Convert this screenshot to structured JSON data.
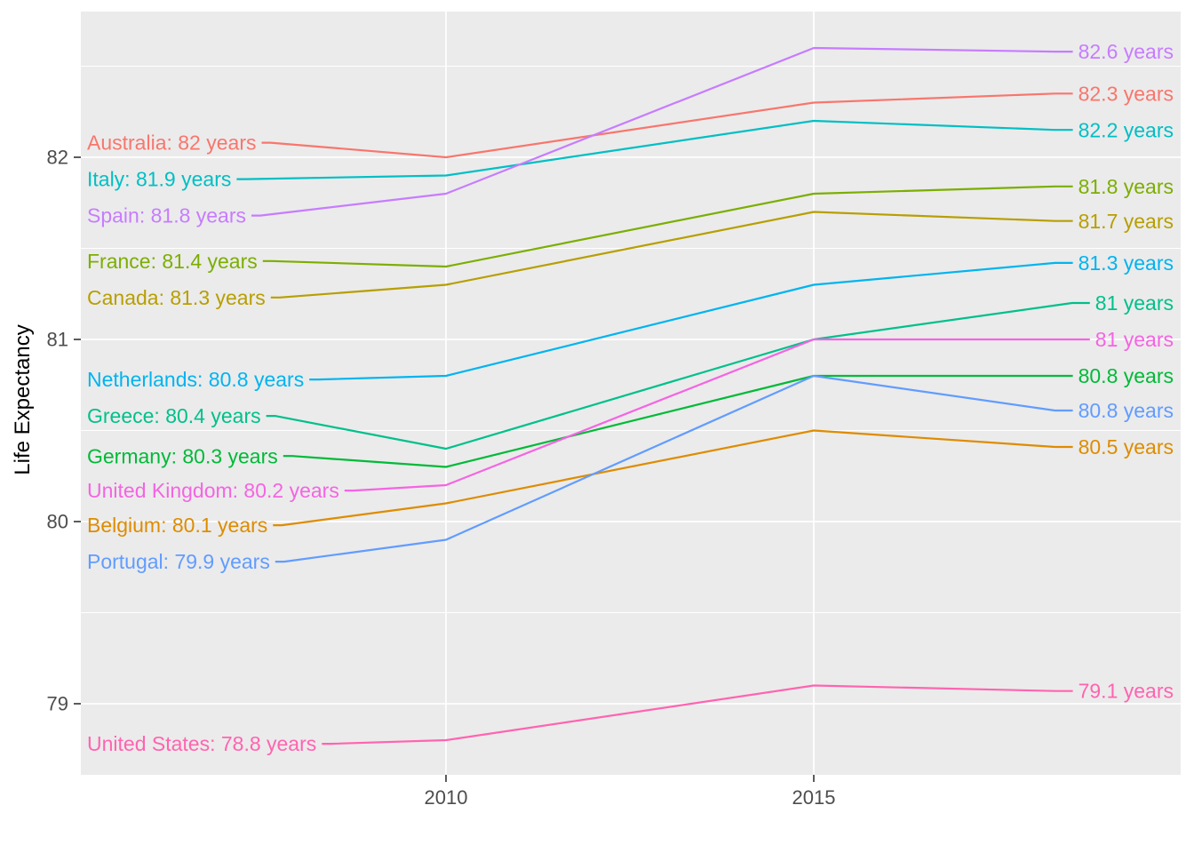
{
  "chart_data": {
    "type": "line",
    "variant": "slopegraph",
    "title": "",
    "xlabel": "",
    "ylabel": "Life Expectancy",
    "x": [
      2010,
      2015
    ],
    "x_tick_labels": [
      "2010",
      "2015"
    ],
    "y_ticks": [
      79,
      80,
      81,
      82
    ],
    "y_minor_gridlines": [
      79.5,
      80.5,
      81.5,
      82.5
    ],
    "ylim": [
      78.61,
      82.79
    ],
    "grid": "on",
    "legend_position": "none",
    "series": [
      {
        "name": "Australia",
        "values": [
          82.0,
          82.3
        ],
        "color": "#F8766D",
        "left_label": "Australia: 82 years",
        "right_label": "82.3 years",
        "left_label_y": 82.08,
        "right_label_y": 82.35
      },
      {
        "name": "Belgium",
        "values": [
          80.1,
          80.5
        ],
        "color": "#DE8C00",
        "left_label": "Belgium: 80.1 years",
        "right_label": "80.5 years",
        "left_label_y": 79.98,
        "right_label_y": 80.41
      },
      {
        "name": "Canada",
        "values": [
          81.3,
          81.7
        ],
        "color": "#B79F00",
        "left_label": "Canada: 81.3 years",
        "right_label": "81.7 years",
        "left_label_y": 81.23,
        "right_label_y": 81.65
      },
      {
        "name": "France",
        "values": [
          81.4,
          81.8
        ],
        "color": "#7CAE00",
        "left_label": "France: 81.4 years",
        "right_label": "81.8 years",
        "left_label_y": 81.43,
        "right_label_y": 81.84
      },
      {
        "name": "Germany",
        "values": [
          80.3,
          80.8
        ],
        "color": "#00BA38",
        "left_label": "Germany: 80.3 years",
        "right_label": "80.8 years",
        "left_label_y": 80.36,
        "right_label_y": 80.8
      },
      {
        "name": "Greece",
        "values": [
          80.4,
          81.0
        ],
        "color": "#00C08B",
        "left_label": "Greece: 80.4 years",
        "right_label": "81 years",
        "left_label_y": 80.58,
        "right_label_y": 81.2
      },
      {
        "name": "Italy",
        "values": [
          81.9,
          82.2
        ],
        "color": "#00BFC4",
        "left_label": "Italy: 81.9 years",
        "right_label": "82.2 years",
        "left_label_y": 81.88,
        "right_label_y": 82.15
      },
      {
        "name": "Netherlands",
        "values": [
          80.8,
          81.3
        ],
        "color": "#00B4F0",
        "left_label": "Netherlands: 80.8 years",
        "right_label": "81.3 years",
        "left_label_y": 80.78,
        "right_label_y": 81.42
      },
      {
        "name": "Portugal",
        "values": [
          79.9,
          80.8
        ],
        "color": "#619CFF",
        "left_label": "Portugal: 79.9 years",
        "right_label": "80.8 years",
        "left_label_y": 79.78,
        "right_label_y": 80.61
      },
      {
        "name": "Spain",
        "values": [
          81.8,
          82.6
        ],
        "color": "#C77CFF",
        "left_label": "Spain: 81.8 years",
        "right_label": "82.6 years",
        "left_label_y": 81.68,
        "right_label_y": 82.58
      },
      {
        "name": "United Kingdom",
        "values": [
          80.2,
          81.0
        ],
        "color": "#F564E3",
        "left_label": "United Kingdom: 80.2 years",
        "right_label": "81 years",
        "left_label_y": 80.17,
        "right_label_y": 81.0
      },
      {
        "name": "United States",
        "values": [
          78.8,
          79.1
        ],
        "color": "#FF64B0",
        "left_label": "United States: 78.8 years",
        "right_label": "79.1 years",
        "left_label_y": 78.78,
        "right_label_y": 79.07
      }
    ]
  },
  "style": {
    "panel_bg": "#EBEBEB",
    "grid_color": "#FFFFFF",
    "axis_text_color": "#4D4D4D",
    "tick_mark_color": "#333333",
    "axis_title_color": "#000000",
    "outer_bg": "#FFFFFF"
  }
}
